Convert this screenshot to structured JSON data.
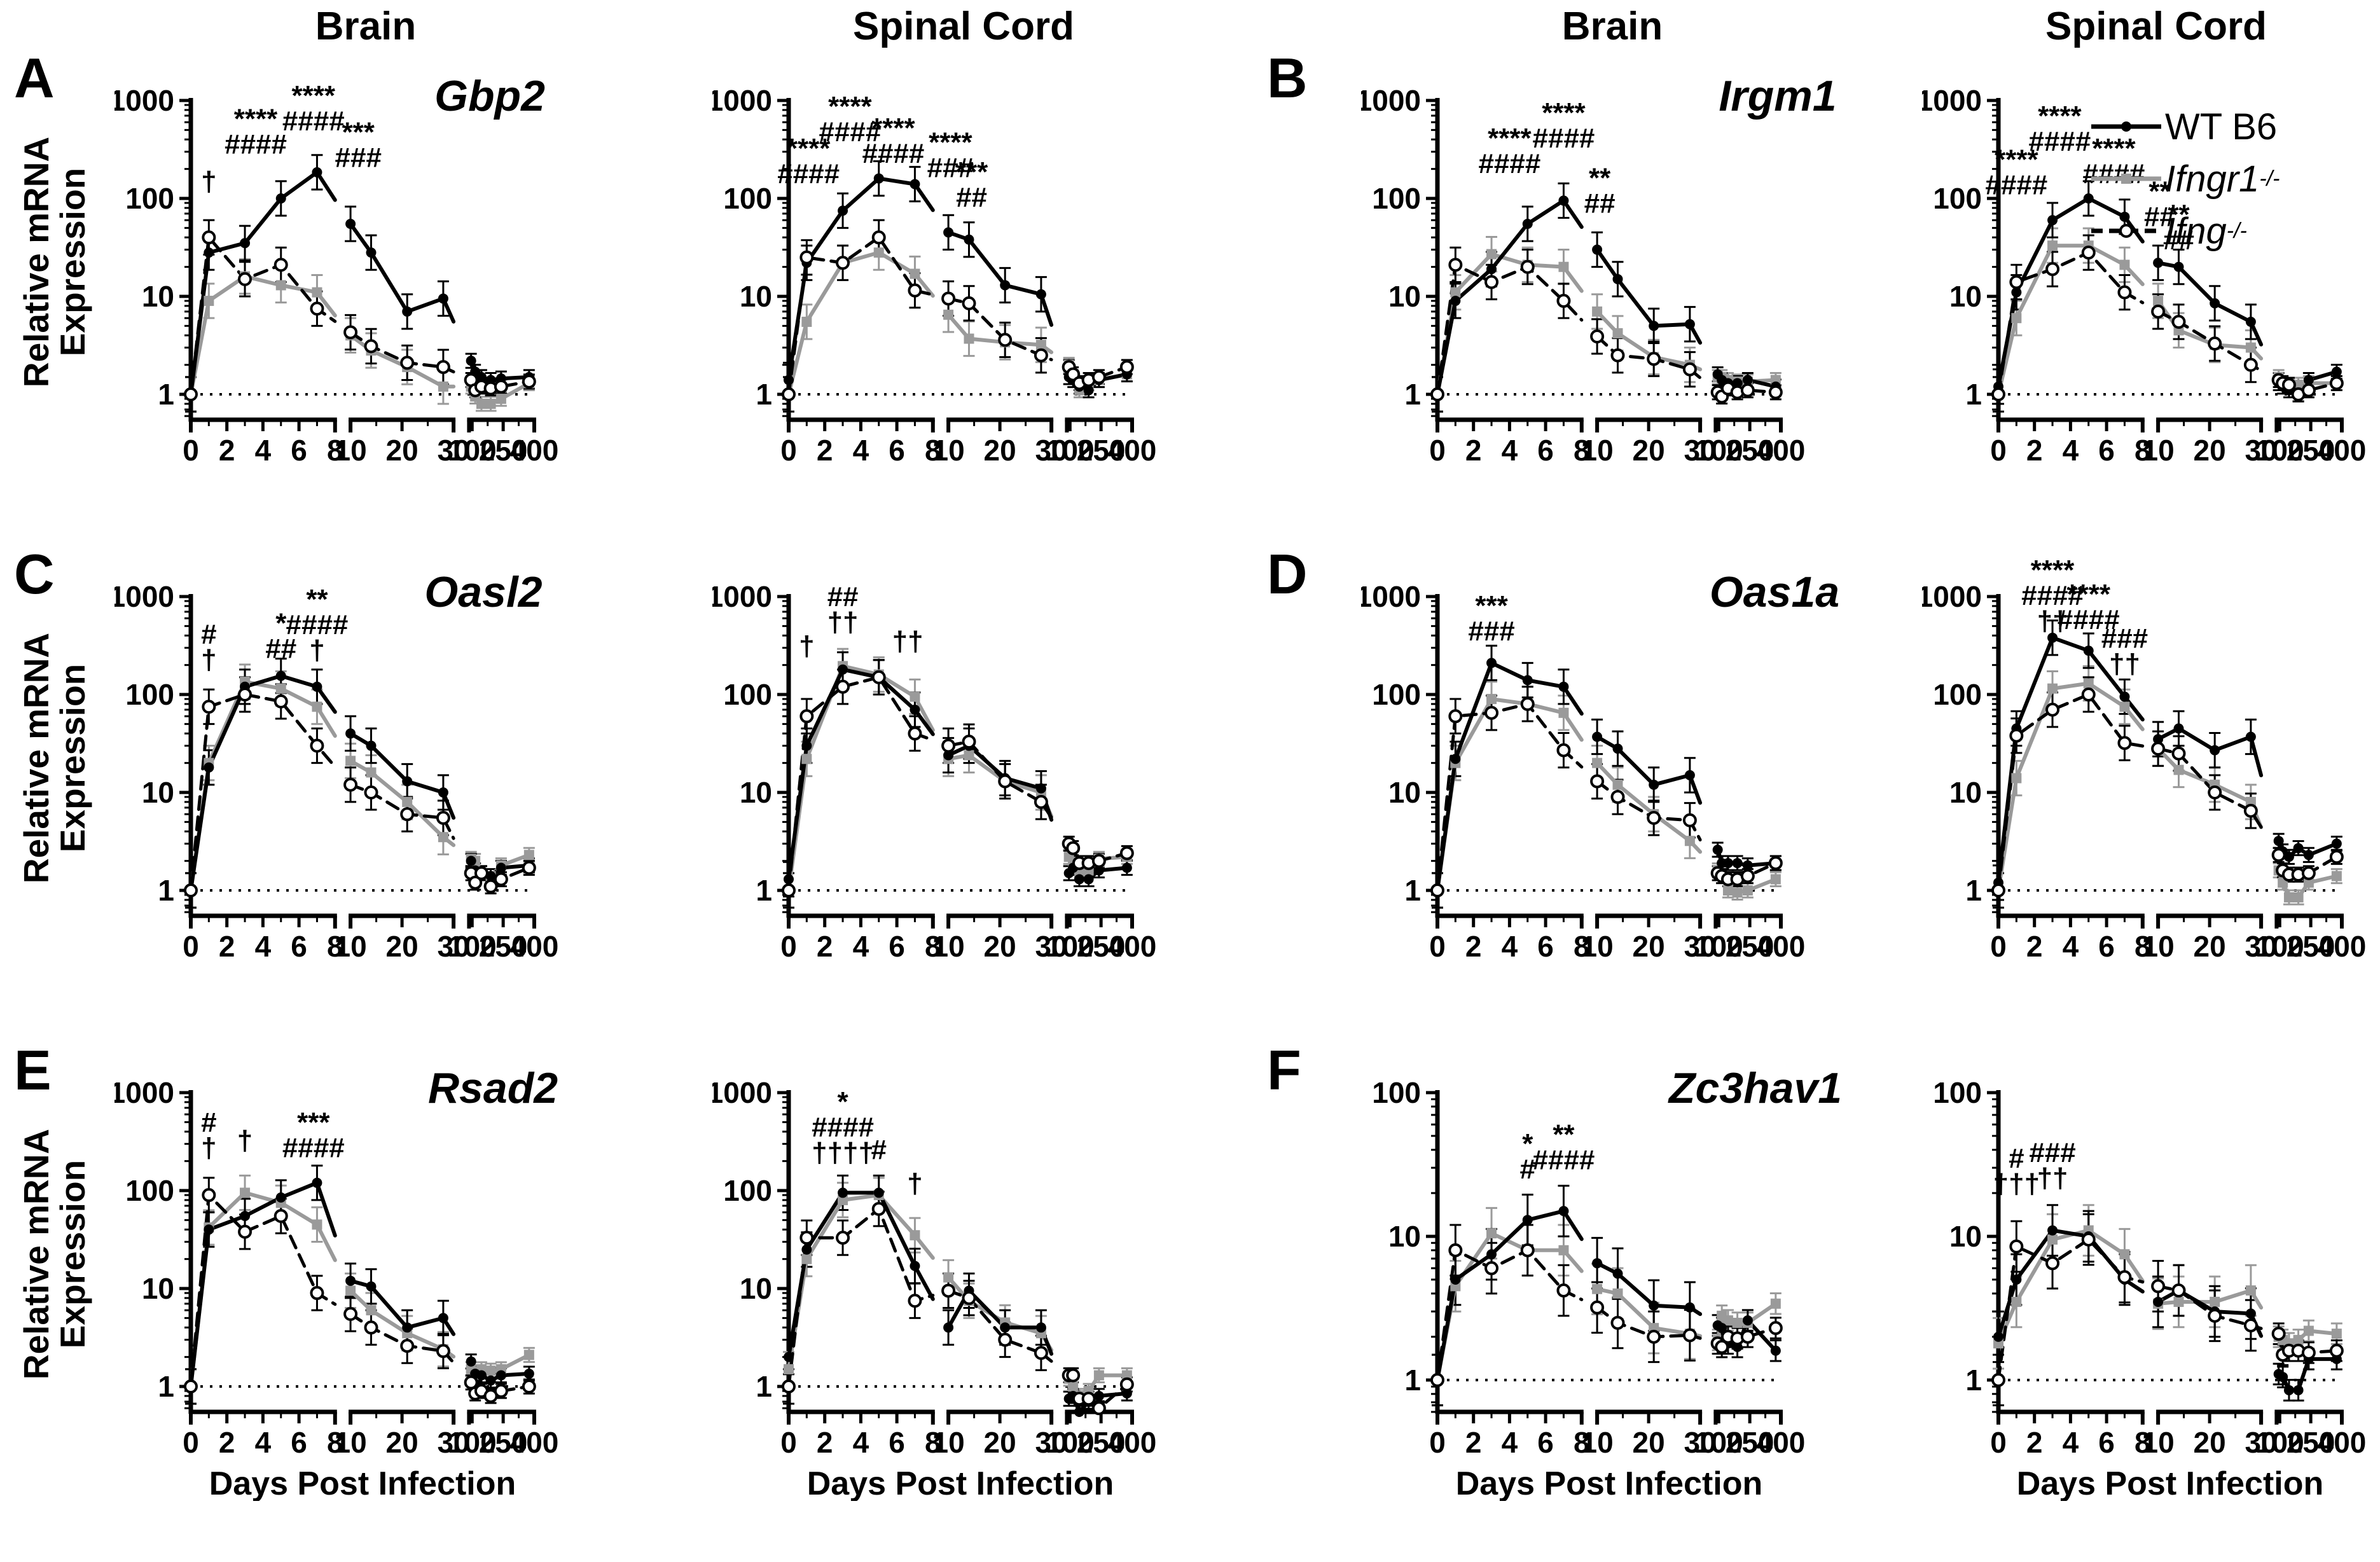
{
  "figure": {
    "headers": [
      "Brain",
      "Spinal Cord",
      "Brain",
      "Spinal Cord"
    ],
    "y_axis_label": "Relative mRNA Expression",
    "x_axis_label": "Days Post Infection",
    "baseline": 1,
    "x_axis": {
      "segments": [
        [
          0,
          8
        ],
        [
          10,
          30
        ],
        [
          85,
          400
        ]
      ],
      "fractions": [
        [
          0,
          0.42
        ],
        [
          0.465,
          0.765
        ],
        [
          0.81,
          1
        ]
      ],
      "major_ticks": [
        [
          0,
          2,
          4,
          6,
          8
        ],
        [
          10,
          20,
          30
        ],
        [
          100,
          250,
          400
        ]
      ],
      "minor_ticks": [
        [
          1,
          3,
          5,
          7
        ],
        [
          15,
          25
        ],
        [
          175,
          325
        ]
      ],
      "days": [
        0,
        1,
        3,
        5,
        7,
        10,
        14,
        21,
        28,
        95,
        115,
        145,
        190,
        240,
        375
      ]
    },
    "error_bars": {
      "acute_factor": 1.5,
      "chronic_factor": 1.18
    },
    "legend": [
      {
        "key": "wt",
        "label": "WT B6",
        "sup": "",
        "italic": false,
        "marker": "filled-circle",
        "color": "#000000",
        "line": "solid"
      },
      {
        "key": "ifngr1",
        "label": "Ifngr1",
        "sup": "-/-",
        "italic": true,
        "marker": "filled-square",
        "color": "#9a9a9a",
        "line": "solid"
      },
      {
        "key": "ifng",
        "label": "Ifng",
        "sup": "-/-",
        "italic": true,
        "marker": "open-circle",
        "color": "#000000",
        "line": "dashed"
      }
    ],
    "panels": [
      {
        "letter": "A",
        "gene": "Gbp2"
      },
      {
        "letter": "B",
        "gene": "Irgm1"
      },
      {
        "letter": "C",
        "gene": "Oasl2"
      },
      {
        "letter": "D",
        "gene": "Oas1a"
      },
      {
        "letter": "E",
        "gene": "Rsad2"
      },
      {
        "letter": "F",
        "gene": "Zc3hav1"
      }
    ]
  },
  "chart_data": [
    {
      "panel": "A",
      "region": "Brain",
      "gene": "Gbp2",
      "type": "line",
      "ylog": true,
      "ylim": [
        1,
        1000
      ],
      "x_title": false,
      "series": {
        "wt": [
          1,
          28,
          35,
          100,
          185,
          55,
          28,
          7,
          9.5,
          2.2,
          1.7,
          1.5,
          1.4,
          1.45,
          1.5
        ],
        "ifngr1": [
          1,
          9,
          16,
          13,
          11,
          4,
          2.8,
          1.9,
          1.2,
          1.2,
          0.95,
          0.8,
          0.8,
          0.9,
          1.3
        ],
        "ifng": [
          1,
          40,
          15,
          21,
          7.5,
          4.3,
          3.1,
          2.1,
          1.9,
          1.4,
          1.1,
          1.2,
          1.15,
          1.2,
          1.35
        ]
      },
      "annotations": [
        {
          "day": 1,
          "y": 120,
          "lines": [
            "†"
          ]
        },
        {
          "day": 3.6,
          "y": 520,
          "lines": [
            "****",
            "####"
          ]
        },
        {
          "day": 6.8,
          "y": 900,
          "lines": [
            "****",
            "####"
          ]
        },
        {
          "day": 11.5,
          "y": 380,
          "lines": [
            "***",
            "###"
          ]
        }
      ]
    },
    {
      "panel": "A",
      "region": "Spinal Cord",
      "gene": "Gbp2",
      "type": "line",
      "ylog": true,
      "ylim": [
        1,
        1000
      ],
      "x_title": false,
      "series": {
        "wt": [
          1.4,
          22,
          75,
          160,
          140,
          45,
          38,
          13,
          10.5,
          1.5,
          1.4,
          1.2,
          1.1,
          1.4,
          1.6
        ],
        "ifngr1": [
          1,
          5.5,
          22,
          28,
          17,
          6.5,
          3.7,
          3.4,
          3.2,
          2,
          1.5,
          1.1,
          1.3,
          1.4,
          1.6
        ],
        "ifng": [
          1,
          25,
          22,
          40,
          11.5,
          9.5,
          8.5,
          3.6,
          2.5,
          1.9,
          1.6,
          1.3,
          1.4,
          1.5,
          1.9
        ]
      },
      "annotations": [
        {
          "day": 1.1,
          "y": 260,
          "lines": [
            "****",
            "####"
          ]
        },
        {
          "day": 3.4,
          "y": 700,
          "lines": [
            "****",
            "####"
          ]
        },
        {
          "day": 5.8,
          "y": 420,
          "lines": [
            "****",
            "####"
          ]
        },
        {
          "day": 10.4,
          "y": 300,
          "lines": [
            "****",
            "###"
          ]
        },
        {
          "day": 14.5,
          "y": 150,
          "lines": [
            "***",
            "##"
          ]
        }
      ]
    },
    {
      "panel": "B",
      "region": "Brain",
      "gene": "Irgm1",
      "type": "line",
      "ylog": true,
      "ylim": [
        1,
        1000
      ],
      "x_title": false,
      "series": {
        "wt": [
          1,
          9,
          19,
          55,
          95,
          30,
          15,
          5,
          5.2,
          1.6,
          1.4,
          1.3,
          1.3,
          1.4,
          1.2
        ],
        "ifngr1": [
          1,
          11,
          27,
          21,
          20,
          7,
          4.2,
          2.4,
          2,
          1.5,
          1.5,
          1.4,
          1.35,
          1.35,
          1.4
        ],
        "ifng": [
          1,
          21,
          14,
          20,
          9,
          3.9,
          2.5,
          2.3,
          1.8,
          1.05,
          0.95,
          1.15,
          1.05,
          1.1,
          1.05
        ]
      },
      "annotations": [
        {
          "day": 4,
          "y": 330,
          "lines": [
            "****",
            "####"
          ]
        },
        {
          "day": 7,
          "y": 600,
          "lines": [
            "****",
            "####"
          ]
        },
        {
          "day": 10.5,
          "y": 130,
          "lines": [
            "**",
            "##"
          ]
        }
      ]
    },
    {
      "panel": "B",
      "region": "Spinal Cord",
      "gene": "Irgm1",
      "type": "line",
      "ylog": true,
      "ylim": [
        1,
        1000
      ],
      "x_title": false,
      "series": {
        "wt": [
          1.2,
          11,
          60,
          100,
          65,
          22,
          20,
          8.5,
          5.5,
          1.3,
          1.2,
          1.1,
          1,
          1.4,
          1.7
        ],
        "ifngr1": [
          1,
          6,
          33,
          33,
          21,
          9,
          4.5,
          3.2,
          3,
          1.5,
          1.3,
          1.2,
          1.25,
          1.3,
          1.3
        ],
        "ifng": [
          1,
          14,
          19,
          28,
          11,
          7,
          5.5,
          3.3,
          2,
          1.4,
          1.3,
          1.25,
          1,
          1.1,
          1.3
        ]
      },
      "annotations": [
        {
          "day": 1,
          "y": 200,
          "lines": [
            "****",
            "####"
          ]
        },
        {
          "day": 3.4,
          "y": 560,
          "lines": [
            "****",
            "####"
          ]
        },
        {
          "day": 6.4,
          "y": 260,
          "lines": [
            "****",
            "####"
          ]
        },
        {
          "day": 10.3,
          "y": 95,
          "lines": [
            "**",
            "##"
          ]
        },
        {
          "day": 14,
          "y": 55,
          "lines": [
            "**",
            "##"
          ]
        }
      ]
    },
    {
      "panel": "C",
      "region": "Brain",
      "gene": "Oasl2",
      "type": "line",
      "ylog": true,
      "ylim": [
        1,
        1000
      ],
      "x_title": false,
      "series": {
        "wt": [
          1,
          18,
          120,
          155,
          120,
          40,
          30,
          13,
          10,
          2,
          1.6,
          1.5,
          1.4,
          1.7,
          1.8
        ],
        "ifngr1": [
          1,
          20,
          135,
          115,
          75,
          21,
          16,
          8,
          3.5,
          2.1,
          2,
          1.5,
          1.4,
          1.8,
          2.3
        ],
        "ifng": [
          1,
          75,
          100,
          85,
          30,
          12,
          10,
          6,
          5.5,
          1.5,
          1.2,
          1.5,
          1.1,
          1.3,
          1.7
        ]
      },
      "annotations": [
        {
          "day": 1,
          "y": 330,
          "lines": [
            "#",
            "†"
          ]
        },
        {
          "day": 5,
          "y": 430,
          "lines": [
            "*",
            "##"
          ]
        },
        {
          "day": 7,
          "y": 750,
          "lines": [
            "**",
            "####",
            "†"
          ]
        }
      ]
    },
    {
      "panel": "C",
      "region": "Spinal Cord",
      "gene": "Oasl2",
      "type": "line",
      "ylog": true,
      "ylim": [
        1,
        1000
      ],
      "x_title": false,
      "series": {
        "wt": [
          1.3,
          30,
          180,
          150,
          70,
          24,
          30,
          14,
          11,
          1.5,
          1.7,
          1.3,
          1.3,
          1.6,
          1.7
        ],
        "ifngr1": [
          1,
          22,
          195,
          160,
          95,
          22,
          24,
          13,
          10,
          2.2,
          1.8,
          1.5,
          1.6,
          2.1,
          2.2
        ],
        "ifng": [
          1,
          60,
          120,
          150,
          40,
          30,
          33,
          13,
          8,
          3,
          2.7,
          1.9,
          1.9,
          2,
          2.4
        ]
      },
      "annotations": [
        {
          "day": 1,
          "y": 250,
          "lines": [
            "†"
          ]
        },
        {
          "day": 3,
          "y": 800,
          "lines": [
            "##",
            "††"
          ]
        },
        {
          "day": 6.6,
          "y": 280,
          "lines": [
            "††"
          ]
        }
      ]
    },
    {
      "panel": "D",
      "region": "Brain",
      "gene": "Oas1a",
      "type": "line",
      "ylog": true,
      "ylim": [
        1,
        1000
      ],
      "x_title": false,
      "series": {
        "wt": [
          1,
          22,
          210,
          140,
          120,
          37,
          28,
          12,
          15,
          2.6,
          1.9,
          1.9,
          1.9,
          1.8,
          1.9
        ],
        "ifngr1": [
          1,
          20,
          90,
          80,
          65,
          20,
          12,
          6,
          3.2,
          1.6,
          1.4,
          1,
          0.95,
          1,
          1.3
        ],
        "ifng": [
          1,
          60,
          65,
          80,
          27,
          13,
          9,
          5.5,
          5.2,
          1.5,
          1.4,
          1.3,
          1.3,
          1.4,
          1.9
        ]
      },
      "annotations": [
        {
          "day": 3,
          "y": 650,
          "lines": [
            "***",
            "###"
          ]
        }
      ]
    },
    {
      "panel": "D",
      "region": "Spinal Cord",
      "gene": "Oas1a",
      "type": "line",
      "ylog": true,
      "ylim": [
        1,
        1000
      ],
      "x_title": false,
      "series": {
        "wt": [
          1.2,
          45,
          380,
          280,
          95,
          35,
          45,
          27,
          37,
          3.2,
          2.5,
          2.2,
          2.7,
          2.3,
          3
        ],
        "ifngr1": [
          1,
          14,
          115,
          130,
          75,
          28,
          17,
          12,
          8,
          1.6,
          1.2,
          0.85,
          0.85,
          1.2,
          1.4
        ],
        "ifng": [
          1,
          38,
          70,
          100,
          32,
          28,
          25,
          10,
          6.5,
          2.3,
          1.6,
          1.45,
          1.45,
          1.5,
          2.2
        ]
      },
      "annotations": [
        {
          "day": 3,
          "y": 1500,
          "lines": [
            "****",
            "####",
            "††"
          ]
        },
        {
          "day": 5,
          "y": 850,
          "lines": [
            "****",
            "####"
          ]
        },
        {
          "day": 7,
          "y": 300,
          "lines": [
            "###",
            "††"
          ]
        }
      ]
    },
    {
      "panel": "E",
      "region": "Brain",
      "gene": "Rsad2",
      "type": "line",
      "ylog": true,
      "ylim": [
        1,
        1000
      ],
      "x_title": true,
      "series": {
        "wt": [
          1,
          40,
          55,
          85,
          120,
          12,
          10.5,
          4,
          5,
          1.8,
          1.35,
          1.3,
          1.15,
          1.3,
          1.35
        ],
        "ifngr1": [
          1,
          42,
          95,
          75,
          45,
          9.5,
          6,
          3.5,
          2.4,
          1.5,
          1.4,
          1.5,
          1.45,
          1.5,
          2.1
        ],
        "ifng": [
          1,
          90,
          38,
          55,
          9,
          5.5,
          4,
          2.6,
          2.3,
          1.1,
          0.85,
          0.9,
          0.8,
          0.9,
          1
        ]
      },
      "annotations": [
        {
          "day": 1,
          "y": 400,
          "lines": [
            "#",
            "†"
          ]
        },
        {
          "day": 3,
          "y": 260,
          "lines": [
            "†"
          ]
        },
        {
          "day": 6.8,
          "y": 400,
          "lines": [
            "***",
            "####"
          ]
        }
      ]
    },
    {
      "panel": "E",
      "region": "Spinal Cord",
      "gene": "Rsad2",
      "type": "line",
      "ylog": true,
      "ylim": [
        1,
        1000
      ],
      "x_title": true,
      "series": {
        "wt": [
          2,
          25,
          95,
          95,
          17,
          4,
          9.5,
          4,
          4,
          0.75,
          0.8,
          0.55,
          0.7,
          0.8,
          0.85
        ],
        "ifngr1": [
          1.5,
          20,
          80,
          90,
          35,
          13,
          7.5,
          4.5,
          3.5,
          1.2,
          1,
          0.8,
          0.9,
          1.3,
          1.3
        ],
        "ifng": [
          1,
          33,
          33,
          65,
          7.5,
          9.5,
          8,
          3,
          2.2,
          1.3,
          1.3,
          0.75,
          0.75,
          0.6,
          1.05
        ]
      },
      "annotations": [
        {
          "day": 3,
          "y": 650,
          "lines": [
            "*",
            "####",
            "††††"
          ]
        },
        {
          "day": 5,
          "y": 210,
          "lines": [
            "#"
          ]
        },
        {
          "day": 7,
          "y": 95,
          "lines": [
            "†"
          ]
        }
      ]
    },
    {
      "panel": "F",
      "region": "Brain",
      "gene": "Zc3hav1",
      "type": "line",
      "ylog": true,
      "ylim": [
        1,
        100
      ],
      "x_title": true,
      "series": {
        "wt": [
          1,
          5,
          7.5,
          13,
          15,
          6.5,
          5.5,
          3.3,
          3.2,
          2.4,
          2.3,
          1.8,
          1.7,
          2.6,
          1.6
        ],
        "ifngr1": [
          1,
          4.5,
          10.5,
          8,
          8,
          4.3,
          4,
          2.3,
          2.1,
          1.9,
          2.8,
          2.6,
          2.5,
          2.5,
          3.4
        ],
        "ifng": [
          1,
          8,
          6,
          8,
          4.2,
          3.2,
          2.5,
          2,
          2.05,
          1.8,
          1.7,
          2,
          1.95,
          2,
          2.3
        ]
      },
      "annotations": [
        {
          "day": 5,
          "y": 38,
          "lines": [
            "*",
            "#"
          ]
        },
        {
          "day": 7,
          "y": 44,
          "lines": [
            "**",
            "####"
          ]
        }
      ]
    },
    {
      "panel": "F",
      "region": "Spinal Cord",
      "gene": "Zc3hav1",
      "type": "line",
      "ylog": true,
      "ylim": [
        1,
        100
      ],
      "x_title": true,
      "series": {
        "wt": [
          2,
          5,
          11,
          10,
          5,
          3.5,
          4.2,
          3,
          2.9,
          1.1,
          1.05,
          0.85,
          0.85,
          1.4,
          1.4
        ],
        "ifngr1": [
          1.8,
          3.5,
          9.5,
          11,
          7.5,
          3.4,
          3.5,
          3.5,
          4.2,
          2,
          1.9,
          1.8,
          1.9,
          2.2,
          2.1
        ],
        "ifng": [
          1,
          8.5,
          6.5,
          9.5,
          5.2,
          4.5,
          4.2,
          2.8,
          2.4,
          2.1,
          1.5,
          1.6,
          1.6,
          1.55,
          1.6
        ]
      },
      "annotations": [
        {
          "day": 1,
          "y": 30,
          "lines": [
            "#",
            "†††"
          ]
        },
        {
          "day": 3,
          "y": 33,
          "lines": [
            "###",
            "††"
          ]
        }
      ]
    }
  ]
}
